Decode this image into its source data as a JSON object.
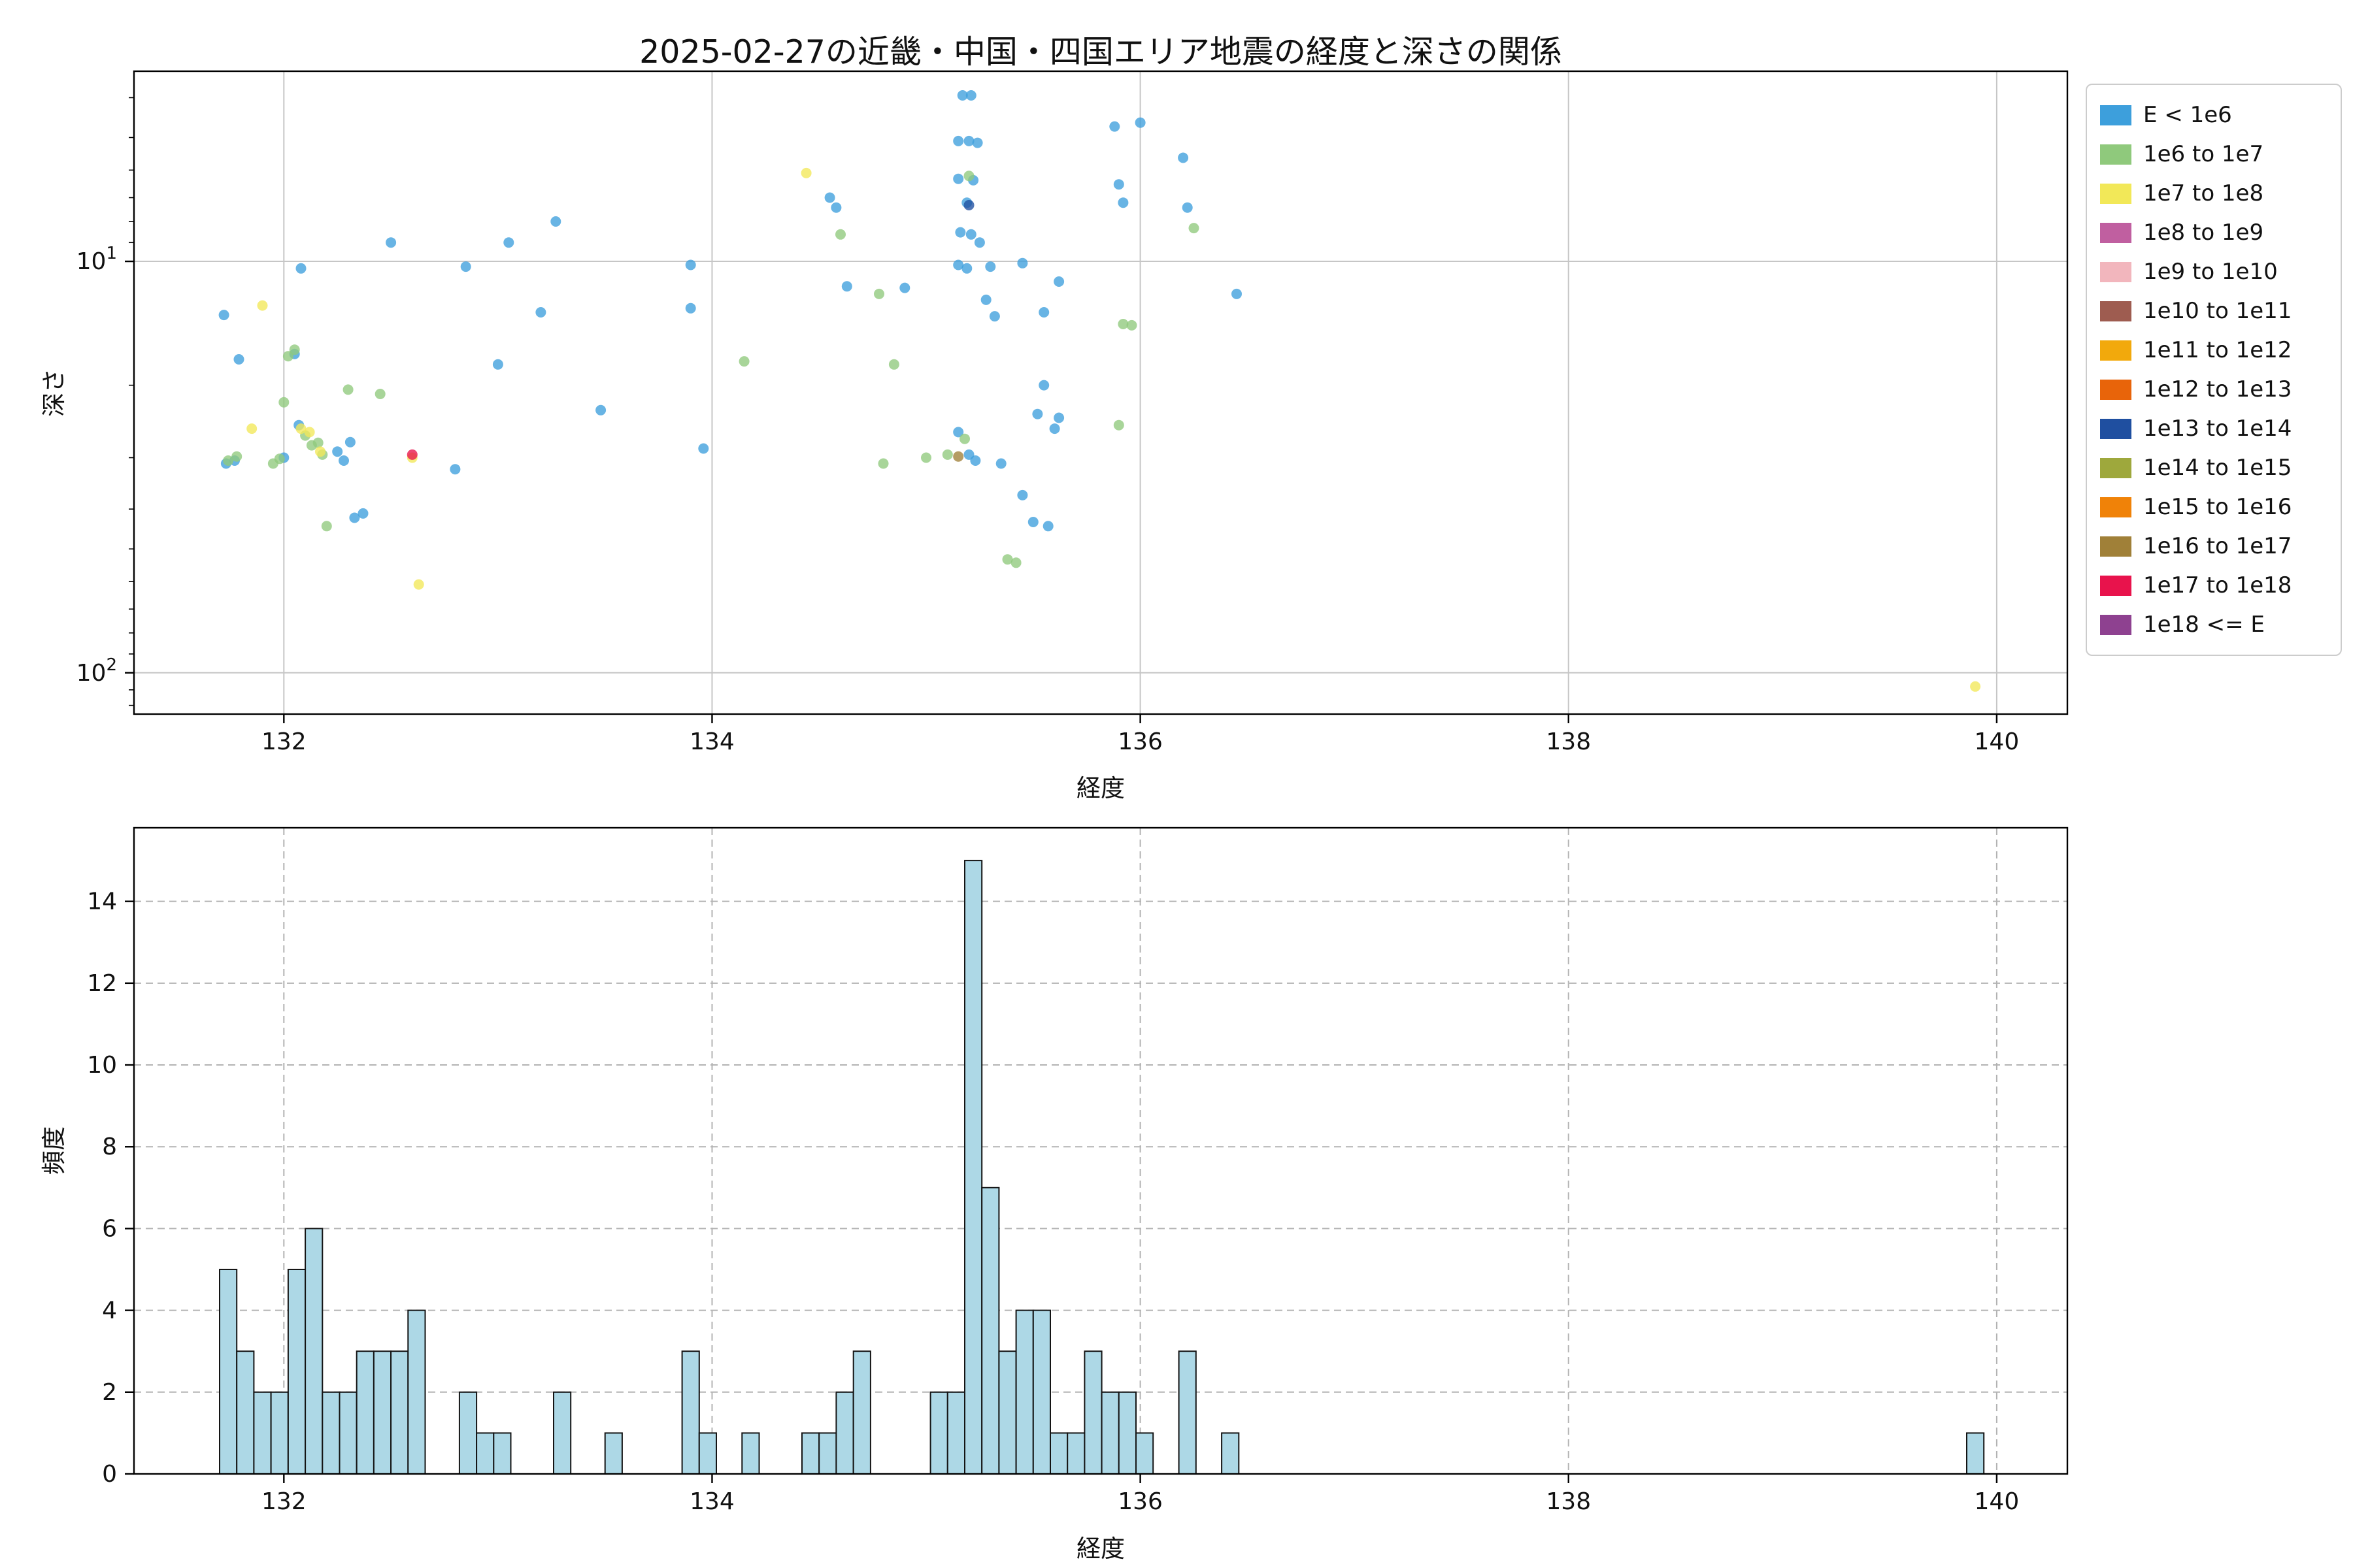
{
  "chart_data": [
    {
      "type": "scatter",
      "title": "2025-02-27の近畿・中国・四国エリア地震の経度と深さの関係",
      "xlabel": "経度",
      "ylabel": "深さ",
      "xlim": [
        131.3,
        140.33
      ],
      "ylim": [
        3.45,
        126
      ],
      "yscale": "log",
      "y_inverted": true,
      "xticks": [
        132,
        134,
        136,
        138,
        140
      ],
      "yticks": [
        10,
        100
      ],
      "ytick_exponents": [
        1,
        2
      ],
      "yticks_minor": [
        4,
        5,
        6,
        7,
        8,
        9,
        20,
        30,
        40,
        50,
        60,
        70,
        80,
        90,
        110,
        120
      ],
      "grid": "solid",
      "legend_position": "outside-right-top",
      "marker_alpha": 0.78,
      "series": [
        {
          "name": "E < 1e6",
          "color": "#3d9fdc",
          "points": [
            [
              131.72,
              13.5
            ],
            [
              131.79,
              17.3
            ],
            [
              131.73,
              31
            ],
            [
              131.77,
              30.5
            ],
            [
              132.0,
              30
            ],
            [
              132.05,
              16.8
            ],
            [
              132.08,
              10.4
            ],
            [
              132.07,
              25
            ],
            [
              132.25,
              29
            ],
            [
              132.28,
              30.5
            ],
            [
              132.31,
              27.5
            ],
            [
              132.33,
              42
            ],
            [
              132.37,
              41
            ],
            [
              132.5,
              9.0
            ],
            [
              132.8,
              32
            ],
            [
              132.85,
              10.3
            ],
            [
              133.0,
              17.8
            ],
            [
              133.05,
              9.0
            ],
            [
              133.2,
              13.3
            ],
            [
              133.27,
              8.0
            ],
            [
              133.48,
              23
            ],
            [
              133.9,
              10.2
            ],
            [
              133.9,
              13.0
            ],
            [
              133.96,
              28.5
            ],
            [
              134.55,
              7.0
            ],
            [
              134.58,
              7.4
            ],
            [
              134.63,
              11.5
            ],
            [
              134.9,
              11.6
            ],
            [
              135.17,
              3.95
            ],
            [
              135.21,
              3.95
            ],
            [
              135.15,
              5.1
            ],
            [
              135.2,
              5.1
            ],
            [
              135.24,
              5.15
            ],
            [
              135.15,
              6.3
            ],
            [
              135.22,
              6.35
            ],
            [
              135.19,
              7.2
            ],
            [
              135.16,
              8.5
            ],
            [
              135.21,
              8.6
            ],
            [
              135.15,
              10.2
            ],
            [
              135.19,
              10.4
            ],
            [
              135.25,
              9.0
            ],
            [
              135.3,
              10.3
            ],
            [
              135.28,
              12.4
            ],
            [
              135.32,
              13.6
            ],
            [
              135.15,
              26
            ],
            [
              135.2,
              29.5
            ],
            [
              135.23,
              30.5
            ],
            [
              135.35,
              31
            ],
            [
              135.45,
              37
            ],
            [
              135.5,
              43
            ],
            [
              135.52,
              23.5
            ],
            [
              135.55,
              20
            ],
            [
              135.57,
              44
            ],
            [
              135.6,
              25.5
            ],
            [
              135.62,
              24
            ],
            [
              135.45,
              10.1
            ],
            [
              135.55,
              13.3
            ],
            [
              135.62,
              11.2
            ],
            [
              135.88,
              4.7
            ],
            [
              135.9,
              6.5
            ],
            [
              135.92,
              7.2
            ],
            [
              136.0,
              4.6
            ],
            [
              136.2,
              5.6
            ],
            [
              136.22,
              7.4
            ],
            [
              136.45,
              12.0
            ]
          ]
        },
        {
          "name": "1e6 to 1e7",
          "color": "#8fc97c",
          "points": [
            [
              131.74,
              30.5
            ],
            [
              131.78,
              29.8
            ],
            [
              131.95,
              31
            ],
            [
              131.98,
              30.2
            ],
            [
              132.0,
              22
            ],
            [
              132.02,
              17
            ],
            [
              132.05,
              16.4
            ],
            [
              132.1,
              26.5
            ],
            [
              132.13,
              28
            ],
            [
              132.16,
              27.6
            ],
            [
              132.18,
              29.5
            ],
            [
              132.2,
              44
            ],
            [
              132.3,
              20.5
            ],
            [
              132.45,
              21
            ],
            [
              134.15,
              17.5
            ],
            [
              134.6,
              8.6
            ],
            [
              134.78,
              12
            ],
            [
              134.8,
              31
            ],
            [
              134.85,
              17.8
            ],
            [
              135.0,
              30
            ],
            [
              135.1,
              29.5
            ],
            [
              135.2,
              6.2
            ],
            [
              135.18,
              27
            ],
            [
              135.38,
              53
            ],
            [
              135.42,
              54
            ],
            [
              135.92,
              14.2
            ],
            [
              135.96,
              14.3
            ],
            [
              135.9,
              25
            ],
            [
              136.25,
              8.3
            ]
          ]
        },
        {
          "name": "1e7 to 1e8",
          "color": "#f2e858",
          "points": [
            [
              131.85,
              25.5
            ],
            [
              131.9,
              12.8
            ],
            [
              132.08,
              25.5
            ],
            [
              132.12,
              26
            ],
            [
              132.17,
              29
            ],
            [
              132.6,
              30
            ],
            [
              132.63,
              61
            ],
            [
              134.44,
              6.1
            ],
            [
              139.9,
              108
            ]
          ]
        },
        {
          "name": "1e8 to 1e9",
          "color": "#c05fa0",
          "points": []
        },
        {
          "name": "1e9 to 1e10",
          "color": "#f2b6bd",
          "points": []
        },
        {
          "name": "1e10 to 1e11",
          "color": "#9e5c50",
          "points": []
        },
        {
          "name": "1e11 to 1e12",
          "color": "#f2a90c",
          "points": []
        },
        {
          "name": "1e12 to 1e13",
          "color": "#e8640a",
          "points": []
        },
        {
          "name": "1e13 to 1e14",
          "color": "#1f4fa0",
          "points": [
            [
              135.2,
              7.3
            ]
          ]
        },
        {
          "name": "1e14 to 1e15",
          "color": "#9ea83c",
          "points": []
        },
        {
          "name": "1e15 to 1e16",
          "color": "#f08208",
          "points": []
        },
        {
          "name": "1e16 to 1e17",
          "color": "#a08038",
          "points": [
            [
              135.15,
              29.8
            ]
          ]
        },
        {
          "name": "1e17 to 1e18",
          "color": "#e8134c",
          "points": [
            [
              132.6,
              29.5
            ]
          ]
        },
        {
          "name": "1e18 <= E",
          "color": "#8e4190",
          "points": []
        }
      ]
    },
    {
      "type": "bar",
      "title": "",
      "xlabel": "経度",
      "ylabel": "頻度",
      "xlim": [
        131.3,
        140.33
      ],
      "ylim": [
        0,
        15.8
      ],
      "xticks": [
        132,
        134,
        136,
        138,
        140
      ],
      "yticks": [
        0,
        2,
        4,
        6,
        8,
        10,
        12,
        14
      ],
      "grid": "dashed",
      "bin_width": 0.08,
      "bar_color": "#add8e6",
      "bar_edge": "#141414",
      "bars": [
        {
          "x": 131.7,
          "count": 5
        },
        {
          "x": 131.78,
          "count": 3
        },
        {
          "x": 131.86,
          "count": 2
        },
        {
          "x": 131.94,
          "count": 2
        },
        {
          "x": 132.02,
          "count": 5
        },
        {
          "x": 132.1,
          "count": 6
        },
        {
          "x": 132.18,
          "count": 2
        },
        {
          "x": 132.26,
          "count": 2
        },
        {
          "x": 132.34,
          "count": 3
        },
        {
          "x": 132.42,
          "count": 3
        },
        {
          "x": 132.5,
          "count": 3
        },
        {
          "x": 132.58,
          "count": 4
        },
        {
          "x": 132.82,
          "count": 2
        },
        {
          "x": 132.9,
          "count": 1
        },
        {
          "x": 132.98,
          "count": 1
        },
        {
          "x": 133.26,
          "count": 2
        },
        {
          "x": 133.5,
          "count": 1
        },
        {
          "x": 133.86,
          "count": 3
        },
        {
          "x": 133.94,
          "count": 1
        },
        {
          "x": 134.14,
          "count": 1
        },
        {
          "x": 134.42,
          "count": 1
        },
        {
          "x": 134.5,
          "count": 1
        },
        {
          "x": 134.58,
          "count": 2
        },
        {
          "x": 134.66,
          "count": 3
        },
        {
          "x": 135.02,
          "count": 2
        },
        {
          "x": 135.1,
          "count": 2
        },
        {
          "x": 135.18,
          "count": 15
        },
        {
          "x": 135.26,
          "count": 7
        },
        {
          "x": 135.34,
          "count": 3
        },
        {
          "x": 135.42,
          "count": 4
        },
        {
          "x": 135.5,
          "count": 4
        },
        {
          "x": 135.58,
          "count": 1
        },
        {
          "x": 135.66,
          "count": 1
        },
        {
          "x": 135.74,
          "count": 3
        },
        {
          "x": 135.82,
          "count": 2
        },
        {
          "x": 135.9,
          "count": 2
        },
        {
          "x": 135.98,
          "count": 1
        },
        {
          "x": 136.18,
          "count": 3
        },
        {
          "x": 136.38,
          "count": 1
        },
        {
          "x": 139.86,
          "count": 1
        }
      ]
    }
  ],
  "colors": {
    "background": "#ffffff",
    "grid_solid": "#c6c6c6",
    "grid_dashed": "#b3b3b3",
    "spine": "#000000",
    "text": "#111111"
  }
}
